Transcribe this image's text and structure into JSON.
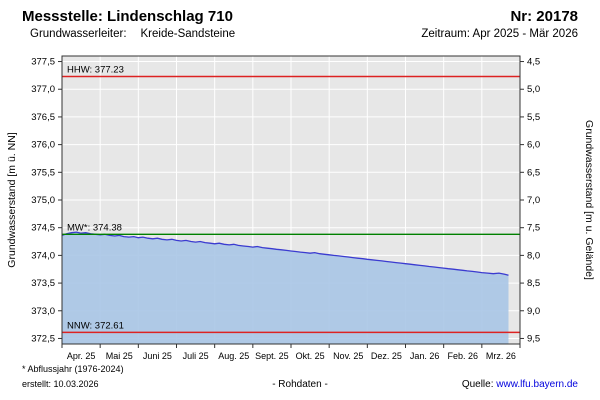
{
  "header": {
    "station_label": "Messstelle: Lindenschlag 710",
    "number": "Nr: 20178",
    "aquifer_label": "Grundwasserleiter:",
    "aquifer_value": "Kreide-Sandsteine",
    "period": "Zeitraum: Apr 2025 - Mär 2026"
  },
  "footer": {
    "note": "* Abflussjahr (1976-2024)",
    "created": "erstellt: 10.03.2026",
    "center_label": "- Rohdaten -",
    "source_label": "Quelle:",
    "source_link": "www.lfu.bayern.de"
  },
  "chart_data": {
    "type": "area",
    "ylabel_left": "Grundwasserstand [m ü. NN]",
    "ylabel_right": "Grundwasserstand [m u. Gelände]",
    "x_tick_labels": [
      "Apr. 25",
      "Mai 25",
      "Juni 25",
      "Juli 25",
      "Aug. 25",
      "Sept. 25",
      "Okt. 25",
      "Nov. 25",
      "Dez. 25",
      "Jan. 26",
      "Feb. 26",
      "Mrz. 26"
    ],
    "ylim_left": [
      372.4,
      377.6
    ],
    "yticks_left": [
      372.5,
      373.0,
      373.5,
      374.0,
      374.5,
      375.0,
      375.5,
      376.0,
      376.5,
      377.0,
      377.5
    ],
    "yticks_right": [
      4.5,
      5.0,
      5.5,
      6.0,
      6.5,
      7.0,
      7.5,
      8.0,
      8.5,
      9.0,
      9.5
    ],
    "right_axis_offset": 382.0,
    "grid": true,
    "reference_lines": [
      {
        "name": "HHW",
        "label": "HHW: 377.23",
        "value": 377.23,
        "color": "#dd2222"
      },
      {
        "name": "MW",
        "label": "MW*: 374.38",
        "value": 374.38,
        "color": "#008000"
      },
      {
        "name": "NNW",
        "label": "NNW: 372.61",
        "value": 372.61,
        "color": "#dd2222"
      }
    ],
    "series": [
      {
        "name": "Grundwasserstand Rohdaten",
        "points": [
          [
            0.0,
            374.36
          ],
          [
            0.12,
            374.39
          ],
          [
            0.25,
            374.41
          ],
          [
            0.38,
            374.42
          ],
          [
            0.5,
            374.4
          ],
          [
            0.62,
            374.41
          ],
          [
            0.75,
            374.39
          ],
          [
            0.88,
            374.38
          ],
          [
            1.0,
            374.37
          ],
          [
            1.12,
            374.38
          ],
          [
            1.25,
            374.36
          ],
          [
            1.38,
            374.35
          ],
          [
            1.5,
            374.36
          ],
          [
            1.62,
            374.34
          ],
          [
            1.75,
            374.33
          ],
          [
            1.88,
            374.34
          ],
          [
            2.0,
            374.32
          ],
          [
            2.12,
            374.33
          ],
          [
            2.25,
            374.31
          ],
          [
            2.38,
            374.3
          ],
          [
            2.5,
            374.31
          ],
          [
            2.62,
            374.29
          ],
          [
            2.75,
            374.28
          ],
          [
            2.88,
            374.29
          ],
          [
            3.0,
            374.27
          ],
          [
            3.12,
            374.26
          ],
          [
            3.25,
            374.27
          ],
          [
            3.38,
            374.25
          ],
          [
            3.5,
            374.24
          ],
          [
            3.62,
            374.25
          ],
          [
            3.75,
            374.23
          ],
          [
            3.88,
            374.22
          ],
          [
            4.0,
            374.21
          ],
          [
            4.12,
            374.22
          ],
          [
            4.25,
            374.2
          ],
          [
            4.38,
            374.19
          ],
          [
            4.5,
            374.2
          ],
          [
            4.62,
            374.18
          ],
          [
            4.75,
            374.17
          ],
          [
            4.88,
            374.16
          ],
          [
            5.0,
            374.15
          ],
          [
            5.12,
            374.16
          ],
          [
            5.25,
            374.14
          ],
          [
            5.38,
            374.13
          ],
          [
            5.5,
            374.12
          ],
          [
            5.62,
            374.11
          ],
          [
            5.75,
            374.1
          ],
          [
            5.88,
            374.09
          ],
          [
            6.0,
            374.08
          ],
          [
            6.12,
            374.07
          ],
          [
            6.25,
            374.06
          ],
          [
            6.38,
            374.05
          ],
          [
            6.5,
            374.04
          ],
          [
            6.62,
            374.05
          ],
          [
            6.75,
            374.03
          ],
          [
            6.88,
            374.02
          ],
          [
            7.0,
            374.01
          ],
          [
            7.12,
            374.0
          ],
          [
            7.25,
            373.99
          ],
          [
            7.38,
            373.98
          ],
          [
            7.5,
            373.97
          ],
          [
            7.62,
            373.96
          ],
          [
            7.75,
            373.95
          ],
          [
            7.88,
            373.94
          ],
          [
            8.0,
            373.93
          ],
          [
            8.12,
            373.92
          ],
          [
            8.25,
            373.91
          ],
          [
            8.38,
            373.9
          ],
          [
            8.5,
            373.89
          ],
          [
            8.62,
            373.88
          ],
          [
            8.75,
            373.87
          ],
          [
            8.88,
            373.86
          ],
          [
            9.0,
            373.85
          ],
          [
            9.12,
            373.84
          ],
          [
            9.25,
            373.83
          ],
          [
            9.38,
            373.82
          ],
          [
            9.5,
            373.81
          ],
          [
            9.62,
            373.8
          ],
          [
            9.75,
            373.79
          ],
          [
            9.88,
            373.78
          ],
          [
            10.0,
            373.77
          ],
          [
            10.12,
            373.76
          ],
          [
            10.25,
            373.75
          ],
          [
            10.38,
            373.74
          ],
          [
            10.5,
            373.73
          ],
          [
            10.62,
            373.72
          ],
          [
            10.75,
            373.71
          ],
          [
            10.88,
            373.7
          ],
          [
            11.0,
            373.69
          ],
          [
            11.15,
            373.68
          ],
          [
            11.3,
            373.67
          ],
          [
            11.45,
            373.68
          ],
          [
            11.6,
            373.66
          ],
          [
            11.7,
            373.64
          ]
        ]
      }
    ],
    "colors": {
      "plot_bg": "#e7e7e7",
      "grid": "#ffffff",
      "area_fill": "#a9c5e5",
      "line": "#3b3bd0",
      "axis": "#333333",
      "hhw_nnw": "#dd2222",
      "mw": "#008000"
    }
  }
}
